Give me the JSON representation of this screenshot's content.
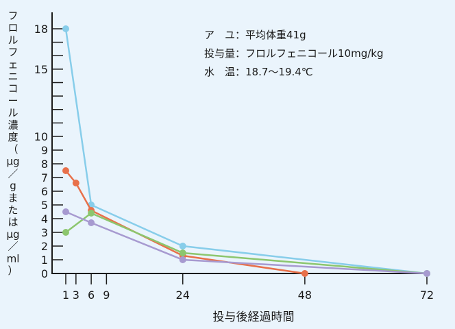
{
  "chart_data": {
    "type": "line",
    "title": "",
    "xlabel": "投与後経過時間",
    "ylabel": "フロルフェニコール濃度(μg/g または μg/ml)",
    "ylabel_chars": [
      "フ",
      "ロ",
      "ル",
      "フ",
      "ェ",
      "ニ",
      "コ",
      "ー",
      "ル",
      "濃",
      "度",
      "（",
      "μg",
      "／",
      "g",
      "ま",
      "た",
      "は",
      "μg",
      "／",
      "ml",
      "）"
    ],
    "x_ticks": [
      1,
      3,
      6,
      9,
      24,
      48,
      72
    ],
    "y_ticks": [
      0,
      1,
      2,
      3,
      4,
      5,
      6,
      7,
      8,
      9,
      10,
      15,
      18
    ],
    "y_segments": [
      [
        0,
        10
      ],
      [
        10,
        18
      ]
    ],
    "annotations": [
      "ア　ユ：平均体重41g",
      "投与量：フロルフェニコール10mg/kg",
      "水　温：18.7〜19.4℃"
    ],
    "series": [
      {
        "color": "#87cdea",
        "points": [
          [
            1,
            18
          ],
          [
            6,
            5
          ],
          [
            24,
            2
          ],
          [
            72,
            0
          ]
        ]
      },
      {
        "color": "#e8704a",
        "points": [
          [
            1,
            7.5
          ],
          [
            3,
            6.6
          ],
          [
            6,
            4.6
          ],
          [
            24,
            1.3
          ],
          [
            48,
            0
          ]
        ]
      },
      {
        "color": "#8cc66e",
        "points": [
          [
            1,
            3
          ],
          [
            6,
            4.4
          ],
          [
            24,
            1.5
          ],
          [
            72,
            0
          ]
        ]
      },
      {
        "color": "#a79ad0",
        "points": [
          [
            1,
            4.5
          ],
          [
            6,
            3.7
          ],
          [
            24,
            1
          ],
          [
            72,
            0
          ]
        ]
      }
    ]
  }
}
